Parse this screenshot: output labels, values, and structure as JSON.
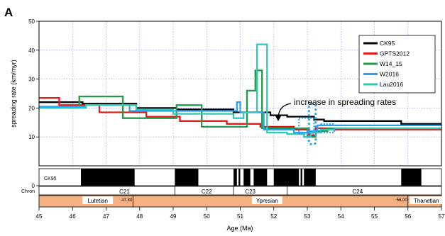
{
  "panel_label": "A",
  "chart_data": {
    "type": "line",
    "ylabel": "spreading rate (km/myr)",
    "xlabel": "Age (Ma)",
    "xlim": [
      45,
      57
    ],
    "ylim": [
      0,
      50
    ],
    "x_ticks": [
      45,
      46,
      47,
      48,
      49,
      50,
      51,
      52,
      53,
      54,
      55,
      56,
      57
    ],
    "y_ticks": [
      0,
      10,
      20,
      30,
      40,
      50
    ],
    "grid": true,
    "legend_position": "top-right",
    "annotation": "increase in spreading rates",
    "series": [
      {
        "name": "CK95",
        "color": "#000000",
        "steps": [
          [
            45,
            22
          ],
          [
            46.3,
            22
          ],
          [
            46.3,
            21.5
          ],
          [
            47.9,
            21.5
          ],
          [
            47.9,
            20
          ],
          [
            49.1,
            20
          ],
          [
            49.1,
            19.5
          ],
          [
            50.8,
            19.5
          ],
          [
            50.8,
            18.5
          ],
          [
            51.9,
            18.5
          ],
          [
            51.9,
            17.5
          ],
          [
            52.4,
            17.5
          ],
          [
            52.4,
            17
          ],
          [
            53.2,
            17
          ],
          [
            53.2,
            16
          ],
          [
            53.5,
            16
          ],
          [
            53.5,
            15.5
          ],
          [
            55.8,
            15.5
          ],
          [
            55.8,
            14.5
          ],
          [
            57,
            14.5
          ]
        ]
      },
      {
        "name": "GPTS2012",
        "color": "#e21a1a",
        "steps": [
          [
            45,
            23.5
          ],
          [
            45.6,
            23.5
          ],
          [
            45.6,
            21
          ],
          [
            46.8,
            21
          ],
          [
            46.8,
            18.5
          ],
          [
            48.2,
            18.5
          ],
          [
            48.2,
            17
          ],
          [
            49.2,
            17
          ],
          [
            49.2,
            15.5
          ],
          [
            50.6,
            15.5
          ],
          [
            50.6,
            14.5
          ],
          [
            51.6,
            14.5
          ],
          [
            51.6,
            13.5
          ],
          [
            52.6,
            13.5
          ],
          [
            52.6,
            12.5
          ],
          [
            53.05,
            12.5
          ],
          [
            53.05,
            10.5
          ],
          [
            53.25,
            10.5
          ],
          [
            53.25,
            13
          ],
          [
            53.6,
            13
          ],
          [
            53.6,
            12.5
          ],
          [
            57,
            12.5
          ]
        ]
      },
      {
        "name": "W14_15",
        "color": "#1f9a48",
        "steps": [
          [
            45,
            20
          ],
          [
            46.2,
            20
          ],
          [
            46.2,
            24
          ],
          [
            47.5,
            24
          ],
          [
            47.5,
            16.5
          ],
          [
            49.1,
            16.5
          ],
          [
            49.1,
            21
          ],
          [
            49.85,
            21
          ],
          [
            49.85,
            13.5
          ],
          [
            51.2,
            13.5
          ],
          [
            51.2,
            26
          ],
          [
            51.45,
            26
          ],
          [
            51.45,
            33
          ],
          [
            51.65,
            33
          ],
          [
            51.65,
            13
          ],
          [
            53.0,
            13
          ],
          [
            53.0,
            10
          ],
          [
            53.25,
            10
          ],
          [
            53.25,
            12
          ],
          [
            53.6,
            12
          ],
          [
            53.6,
            13
          ],
          [
            57,
            13
          ]
        ]
      },
      {
        "name": "W2016",
        "color": "#29a3f0",
        "steps": [
          [
            45,
            20.5
          ],
          [
            46.4,
            20.5
          ],
          [
            46.4,
            21
          ],
          [
            47.7,
            21
          ],
          [
            47.7,
            19
          ],
          [
            50.9,
            19
          ],
          [
            50.9,
            22
          ],
          [
            51.0,
            22
          ],
          [
            51.0,
            18.5
          ],
          [
            51.7,
            18.5
          ],
          [
            51.7,
            12.5
          ],
          [
            52.6,
            12.5
          ],
          [
            52.6,
            11.5
          ],
          [
            53.0,
            11.5
          ],
          [
            53.0,
            12
          ],
          [
            53.3,
            12
          ],
          [
            53.3,
            14
          ],
          [
            57,
            14
          ]
        ]
      },
      {
        "name": "Lau2016",
        "color": "#2cc8b8",
        "steps": [
          [
            45,
            20
          ],
          [
            46.4,
            20
          ],
          [
            46.4,
            21
          ],
          [
            47.9,
            21
          ],
          [
            47.9,
            19.5
          ],
          [
            49.0,
            19.5
          ],
          [
            49.0,
            18
          ],
          [
            50.8,
            18
          ],
          [
            50.8,
            16.5
          ],
          [
            51.1,
            16.5
          ],
          [
            51.1,
            18.5
          ],
          [
            51.5,
            18.5
          ],
          [
            51.5,
            42
          ],
          [
            51.8,
            42
          ],
          [
            51.8,
            11.5
          ],
          [
            52.4,
            11.5
          ],
          [
            52.4,
            11
          ],
          [
            52.9,
            11
          ],
          [
            52.9,
            10
          ],
          [
            53.1,
            10
          ],
          [
            53.1,
            11.5
          ],
          [
            53.4,
            11.5
          ],
          [
            53.4,
            12.5
          ],
          [
            53.8,
            12.5
          ],
          [
            53.8,
            13
          ],
          [
            57,
            13
          ]
        ]
      }
    ],
    "box_series": "W2016",
    "boxes": [
      {
        "x": [
          52.75,
          53.2
        ],
        "y": [
          11,
          16.5
        ]
      },
      {
        "x": [
          53.4,
          53.8
        ],
        "y": [
          11.5,
          14.5
        ]
      }
    ],
    "narrow_box": {
      "x": [
        53.05,
        53.25
      ],
      "y": [
        7.5,
        21.5
      ]
    },
    "chron_row": {
      "label_top": "CK95",
      "label_bottom": "Chron",
      "blocks": [
        [
          46.25,
          47.85
        ],
        [
          49.05,
          49.75
        ],
        [
          50.8,
          50.9
        ],
        [
          50.95,
          51.0
        ],
        [
          51.1,
          51.3
        ],
        [
          51.4,
          51.8
        ],
        [
          52.0,
          52.75
        ],
        [
          52.8,
          52.85
        ],
        [
          52.9,
          53.25
        ],
        [
          55.8,
          56.4
        ]
      ],
      "chron_names": [
        {
          "name": "C21",
          "x": 47.55
        },
        {
          "name": "C22",
          "x": 50.0
        },
        {
          "name": "C23",
          "x": 51.3
        },
        {
          "name": "C24",
          "x": 54.5
        }
      ],
      "chron_dividers": [
        49.05,
        50.8,
        52.4
      ]
    },
    "epoch_row": {
      "color": "#f6b183",
      "epochs": [
        {
          "name": "Lutetian",
          "x": 46.75
        },
        {
          "name": "Ypresian",
          "x": 51.8
        },
        {
          "name": "Thanetian",
          "x": 56.55
        }
      ],
      "boundaries": [
        {
          "value": "47.80",
          "x": 47.8
        },
        {
          "value": "56.00",
          "x": 56.0
        }
      ]
    }
  }
}
